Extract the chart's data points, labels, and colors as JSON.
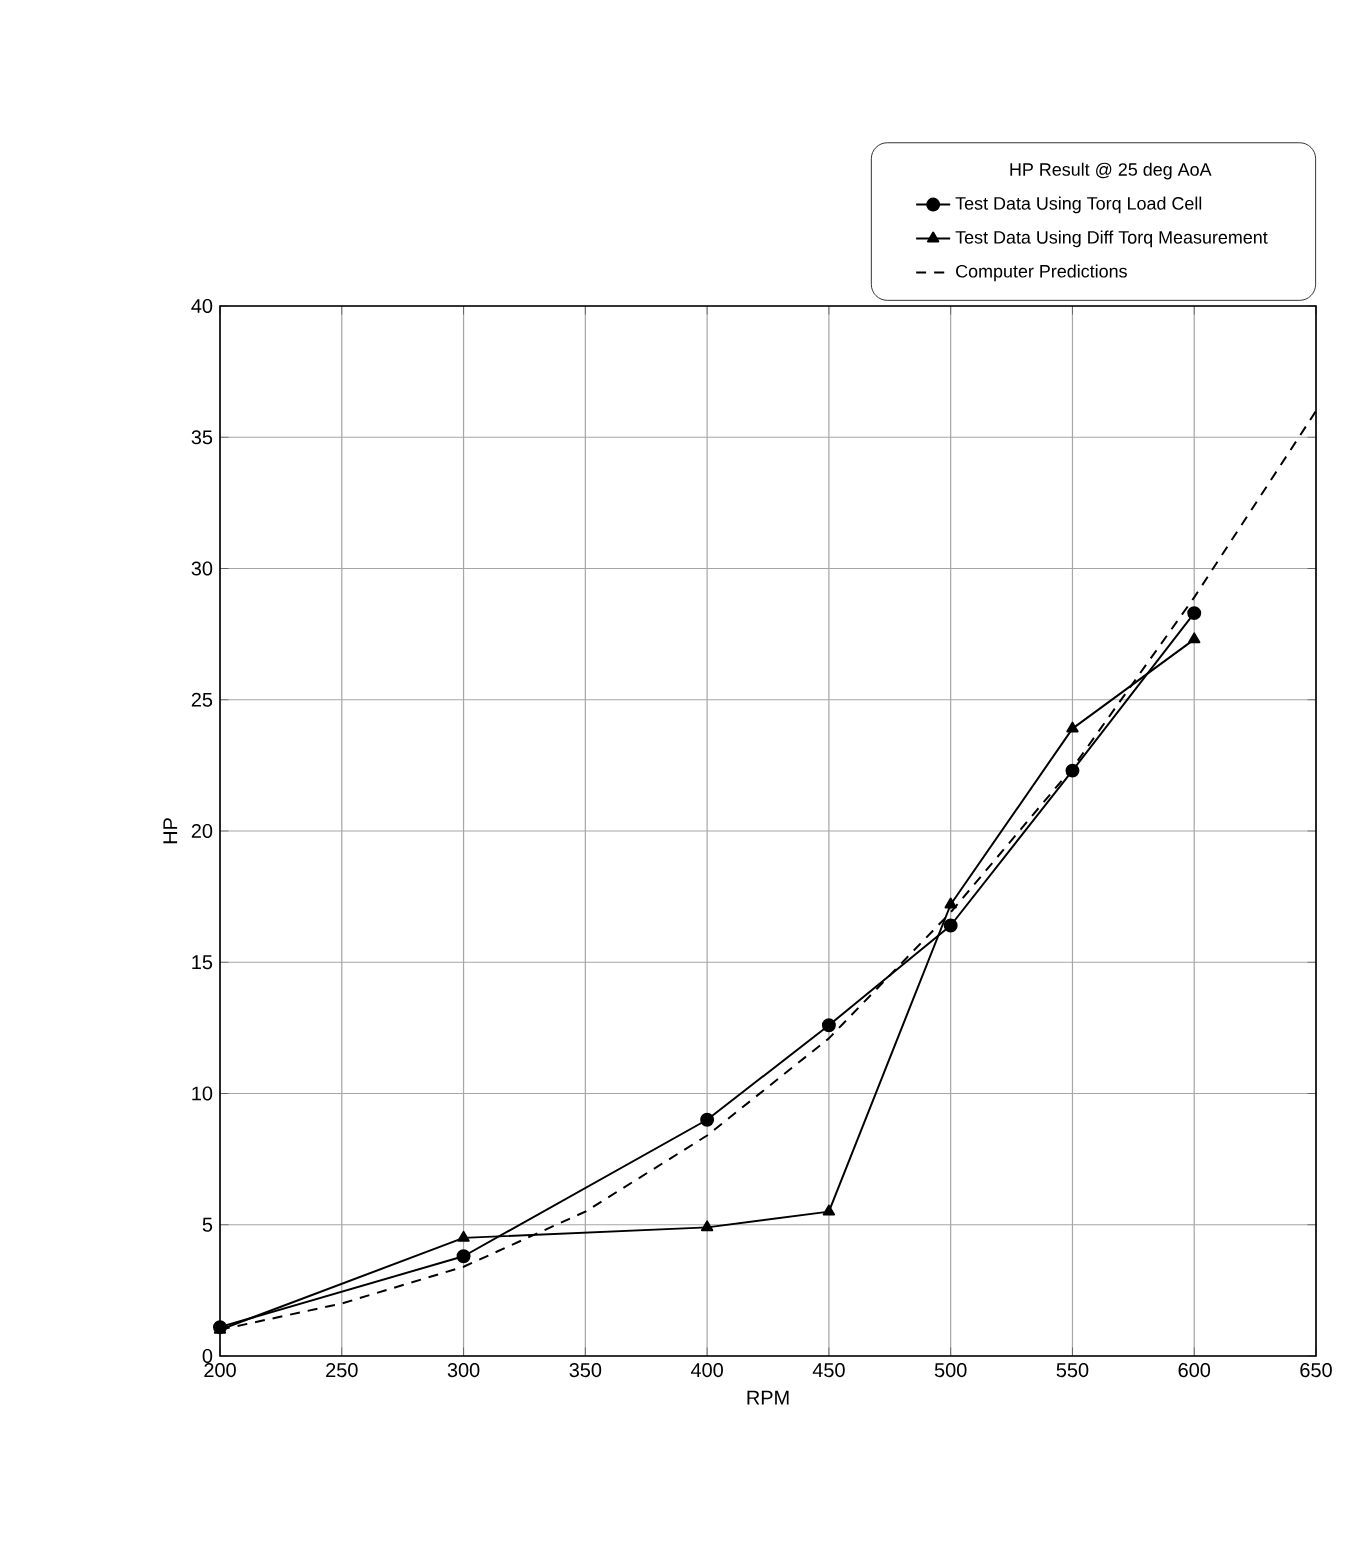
{
  "chart_data": {
    "type": "line",
    "xlabel": "RPM",
    "ylabel": "HP",
    "legend_title": "HP Result @ 25 deg AoA",
    "x": [
      200,
      300,
      400,
      450,
      500,
      550,
      600
    ],
    "series": [
      {
        "name": "Test Data Using Torq Load Cell",
        "color": "#000000",
        "marker": "circle",
        "line_style": "solid",
        "values": [
          1.1,
          3.8,
          9.0,
          12.6,
          16.4,
          22.3,
          28.3
        ]
      },
      {
        "name": "Test Data Using Diff Torq Measurement",
        "color": "#000000",
        "marker": "triangle",
        "line_style": "solid",
        "values": [
          1.0,
          4.5,
          4.9,
          5.5,
          17.2,
          23.9,
          27.3
        ]
      },
      {
        "name": "Computer Predictions",
        "color": "#000000",
        "marker": "none",
        "line_style": "dashed",
        "x": [
          200,
          250,
          300,
          350,
          400,
          450,
          500,
          550,
          600,
          650
        ],
        "values": [
          1.0,
          2.0,
          3.4,
          5.5,
          8.4,
          12.1,
          16.9,
          22.4,
          28.9,
          36.0
        ]
      }
    ],
    "xlim": [
      200,
      650
    ],
    "ylim": [
      0,
      40
    ],
    "xticks": [
      200,
      250,
      300,
      350,
      400,
      450,
      500,
      550,
      600,
      650
    ],
    "yticks": [
      0,
      5,
      10,
      15,
      20,
      25,
      30,
      35,
      40
    ],
    "grid": true,
    "legend": "top right"
  }
}
